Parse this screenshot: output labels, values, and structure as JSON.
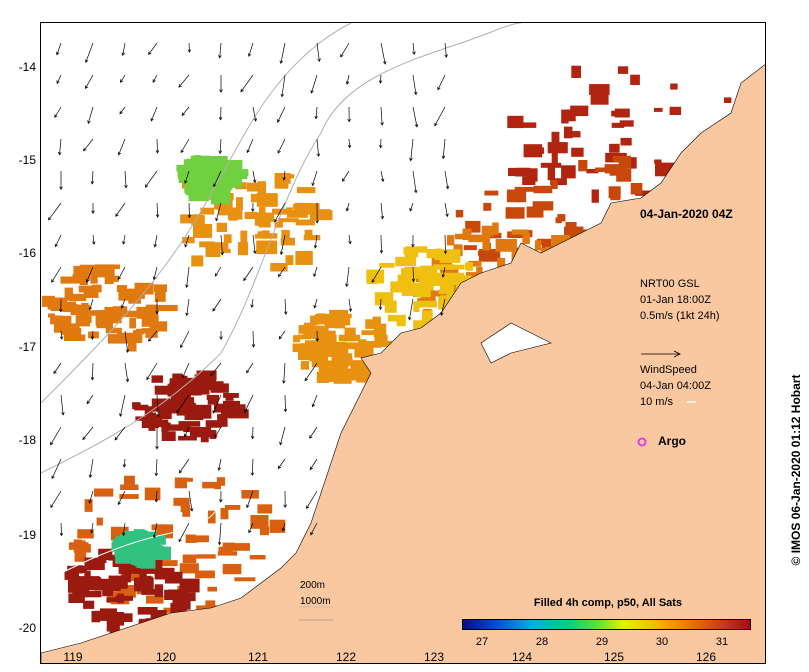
{
  "map": {
    "lat_ticks": [
      "-14",
      "-15",
      "-16",
      "-17",
      "-18",
      "-19",
      "-20"
    ],
    "lon_ticks": [
      "119",
      "120",
      "121",
      "122",
      "123",
      "124",
      "125",
      "126"
    ],
    "timestamp": "04-Jan-2020 04Z",
    "nrt_title": "NRT00 GSL",
    "nrt_time": "01-Jan 18:00Z",
    "nrt_scale": "0.5m/s (1kt 24h)",
    "wind_title": "WindSpeed",
    "wind_time": "04-Jan 04:00Z",
    "wind_scale": "10 m/s",
    "argo_label": "Argo",
    "argo_color": "#e040e0",
    "depth_label_1": "200m",
    "depth_label_2": "1000m",
    "land_color": "#fac8a0"
  },
  "legend": {
    "title": "Filled 4h comp, p50, All Sats",
    "ticks": [
      "27",
      "28",
      "29",
      "30",
      "31"
    ]
  },
  "credit": "© IMOS 06-Jan-2020 01:12 Hobart"
}
